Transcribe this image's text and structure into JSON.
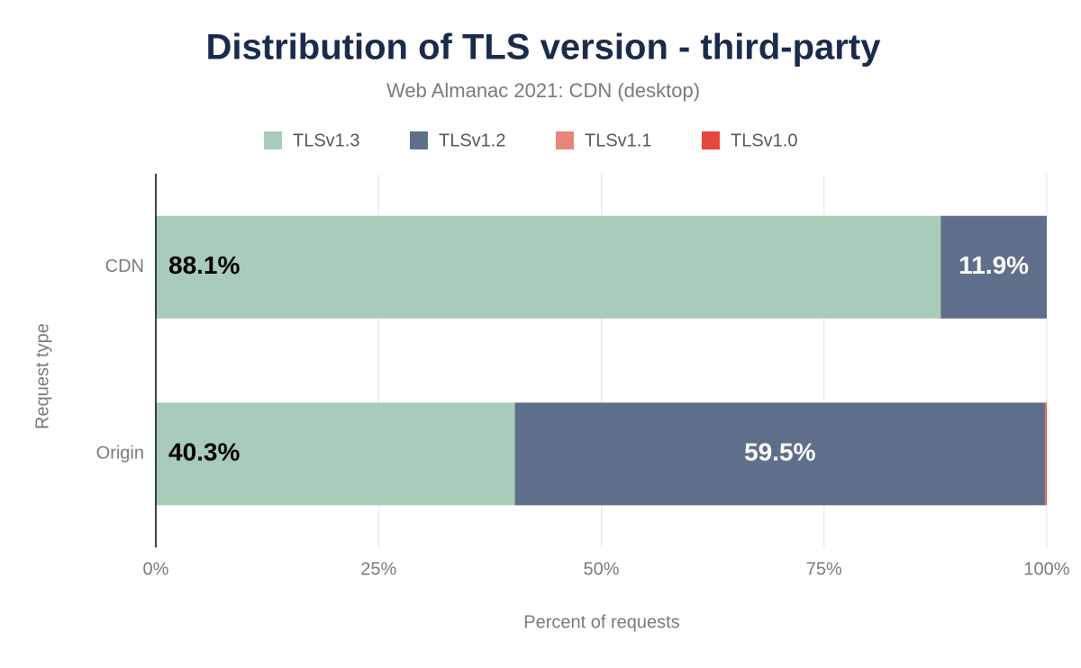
{
  "chart_data": {
    "type": "stacked-bar-horizontal",
    "title": "Distribution of TLS version - third-party",
    "subtitle": "Web Almanac 2021: CDN (desktop)",
    "x_label": "Percent of requests",
    "y_label": "Request type",
    "categories": [
      "CDN",
      "Origin"
    ],
    "series": [
      {
        "name": "TLSv1.3",
        "color": "#a8cbba",
        "label_color": "#000000",
        "values": [
          88.1,
          40.3
        ],
        "value_labels": [
          "88.1%",
          "40.3%"
        ]
      },
      {
        "name": "TLSv1.2",
        "color": "#5f6e8a",
        "label_color": "#ffffff",
        "values": [
          11.9,
          59.5
        ],
        "value_labels": [
          "11.9%",
          "59.5%"
        ]
      },
      {
        "name": "TLSv1.1",
        "color": "#e8857a",
        "values": [
          0,
          0.1
        ]
      },
      {
        "name": "TLSv1.0",
        "color": "#e8473b",
        "values": [
          0,
          0.1
        ]
      }
    ],
    "xlim": [
      0,
      100
    ],
    "xticks": [
      {
        "value": 0,
        "label": "0%"
      },
      {
        "value": 25,
        "label": "25%"
      },
      {
        "value": 50,
        "label": "50%"
      },
      {
        "value": 75,
        "label": "75%"
      },
      {
        "value": 100,
        "label": "100%"
      }
    ],
    "grid": true,
    "legend": "top"
  }
}
